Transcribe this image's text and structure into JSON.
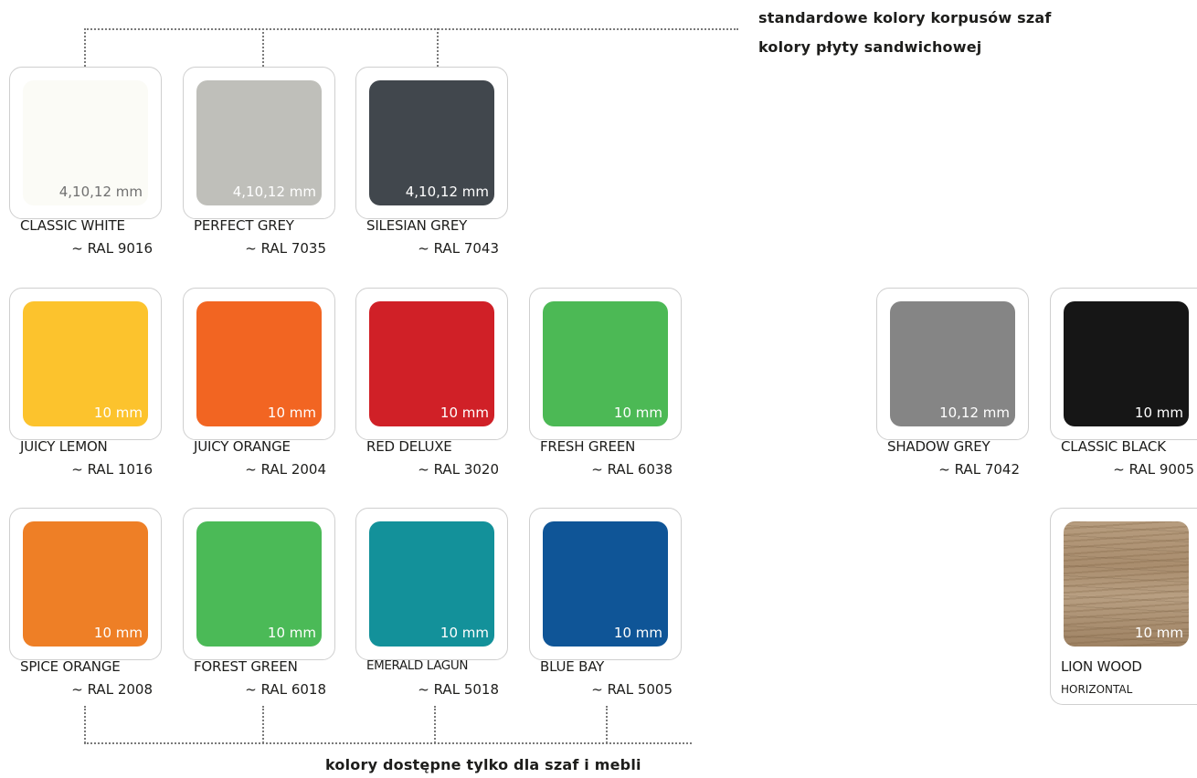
{
  "legend": {
    "top_line1": "standardowe kolory korpusów szaf",
    "top_line2": "kolory płyty sandwichowej",
    "bottom": "kolory dostępne tylko dla szaf i mebli"
  },
  "colors": {
    "classic_white": {
      "name": "CLASSIC WHITE",
      "ral": "~ RAL 9016",
      "thickness": "4,10,12 mm",
      "hex": "#fbfbf6"
    },
    "perfect_grey": {
      "name": "PERFECT GREY",
      "ral": "~ RAL 7035",
      "thickness": "4,10,12 mm",
      "hex": "#bfbfba"
    },
    "silesian_grey": {
      "name": "SILESIAN GREY",
      "ral": "~ RAL 7043",
      "thickness": "4,10,12 mm",
      "hex": "#41474d"
    },
    "juicy_lemon": {
      "name": "JUICY LEMON",
      "ral": "~ RAL 1016",
      "thickness": "10 mm",
      "hex": "#fcc32d"
    },
    "juicy_orange": {
      "name": "JUICY ORANGE",
      "ral": "~ RAL 2004",
      "thickness": "10 mm",
      "hex": "#f26522"
    },
    "red_deluxe": {
      "name": "RED DELUXE",
      "ral": "~ RAL 3020",
      "thickness": "10 mm",
      "hex": "#d02027"
    },
    "fresh_green": {
      "name": "FRESH GREEN",
      "ral": "~ RAL 6038",
      "thickness": "10 mm",
      "hex": "#4cb955"
    },
    "spice_orange": {
      "name": "SPICE ORANGE",
      "ral": "~ RAL 2008",
      "thickness": "10 mm",
      "hex": "#ee7f26"
    },
    "forest_green": {
      "name": "FOREST GREEN",
      "ral": "~ RAL 6018",
      "thickness": "10 mm",
      "hex": "#4bba57"
    },
    "emerald_lagun": {
      "name": "EMERALD LAGUN",
      "ral": "~ RAL 5018",
      "thickness": "10 mm",
      "hex": "#13919a"
    },
    "blue_bay": {
      "name": "BLUE BAY",
      "ral": "~ RAL 5005",
      "thickness": "10 mm",
      "hex": "#0f5597"
    },
    "shadow_grey": {
      "name": "SHADOW GREY",
      "ral": "~ RAL 7042",
      "thickness": "10,12 mm",
      "hex": "#858585"
    },
    "classic_black": {
      "name": "CLASSIC BLACK",
      "ral": "~ RAL 9005",
      "thickness": "10 mm",
      "hex": "#161616"
    },
    "lion_wood": {
      "name": "LION WOOD",
      "ral": "HORIZONTAL",
      "thickness": "10 mm",
      "hex": "#b09679"
    }
  }
}
